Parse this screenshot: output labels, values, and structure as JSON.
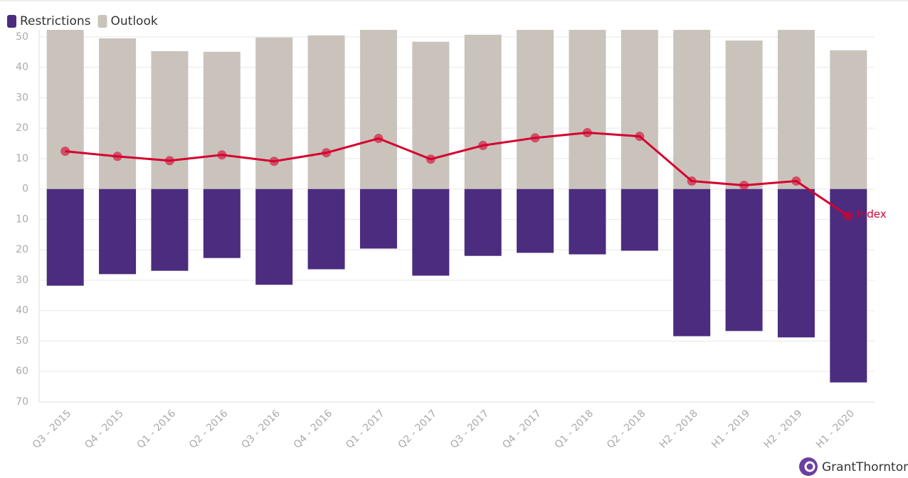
{
  "chart_data": {
    "type": "bar",
    "categories": [
      "Q3 - 2015",
      "Q4 - 2015",
      "Q1 - 2016",
      "Q2 - 2016",
      "Q3 - 2016",
      "Q4 - 2016",
      "Q1 - 2017",
      "Q2 - 2017",
      "Q3 - 2017",
      "Q4 - 2017",
      "Q1 - 2018",
      "Q2 - 2018",
      "H2 - 2018",
      "H1 - 2019",
      "H2 - 2019",
      "H1 - 2020"
    ],
    "series": [
      {
        "name": "Restrictions",
        "type": "bar",
        "color": "#4b2c7e",
        "values": [
          -31.8,
          -28,
          -26.9,
          -22.7,
          -31.5,
          -26.4,
          -19.6,
          -28.5,
          -22,
          -21,
          -21.5,
          -20.3,
          -48.4,
          -46.7,
          -48.8,
          -63.6
        ]
      },
      {
        "name": "Outlook",
        "type": "bar",
        "color": "#c9c3bc",
        "values": [
          53,
          49.5,
          45.3,
          45.1,
          49.8,
          50.5,
          53,
          48.4,
          50.7,
          53,
          53,
          53,
          53,
          48.8,
          53,
          45.6
        ]
      },
      {
        "name": "Index",
        "type": "line",
        "color": "#d6002f",
        "values": [
          12.4,
          10.7,
          9.3,
          11.2,
          9.1,
          11.9,
          16.6,
          9.8,
          14.3,
          16.8,
          18.5,
          17.3,
          2.6,
          1.2,
          2.6,
          -8.9
        ]
      }
    ],
    "ylim": [
      -70,
      52.3
    ],
    "yticks": [
      50,
      40,
      30,
      20,
      10,
      0,
      {
        "value": -10,
        "label": "10"
      },
      {
        "value": -20,
        "label": "20"
      },
      {
        "value": -30,
        "label": "30"
      },
      {
        "value": -40,
        "label": "40"
      },
      {
        "value": -50,
        "label": "50"
      },
      {
        "value": -60,
        "label": "60"
      },
      {
        "value": -70,
        "label": "70"
      }
    ],
    "grid": true,
    "legend": "top-left"
  },
  "brand": "GrantThornton"
}
